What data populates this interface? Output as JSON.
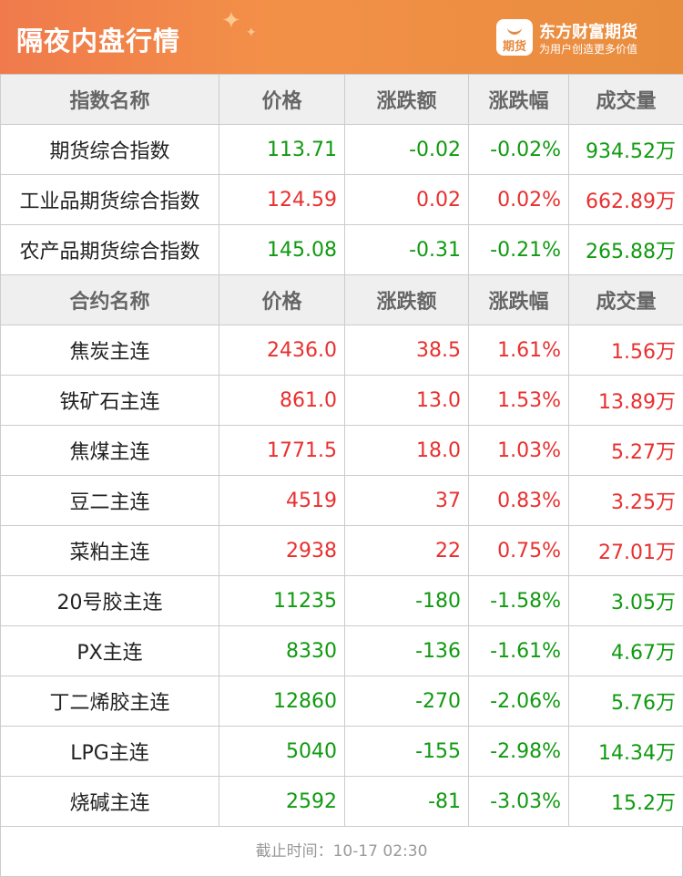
{
  "header": {
    "title": "隔夜内盘行情",
    "brand": "东方财富期货",
    "slogan": "为用户创造更多价值",
    "logo_text": "期货",
    "colors": {
      "up": "#e8302f",
      "down": "#109a10",
      "header": "#f07a4c"
    }
  },
  "index_columns": [
    "指数名称",
    "价格",
    "涨跌额",
    "涨跌幅",
    "成交量"
  ],
  "indices": [
    {
      "name": "期货综合指数",
      "price": "113.71",
      "change": "-0.02",
      "pct": "-0.02%",
      "volume": "934.52万",
      "dir": "dn"
    },
    {
      "name": "工业品期货综合指数",
      "price": "124.59",
      "change": "0.02",
      "pct": "0.02%",
      "volume": "662.89万",
      "dir": "up"
    },
    {
      "name": "农产品期货综合指数",
      "price": "145.08",
      "change": "-0.31",
      "pct": "-0.21%",
      "volume": "265.88万",
      "dir": "dn"
    }
  ],
  "contract_columns": [
    "合约名称",
    "价格",
    "涨跌额",
    "涨跌幅",
    "成交量"
  ],
  "contracts": [
    {
      "name": "焦炭主连",
      "price": "2436.0",
      "change": "38.5",
      "pct": "1.61%",
      "volume": "1.56万",
      "dir": "up"
    },
    {
      "name": "铁矿石主连",
      "price": "861.0",
      "change": "13.0",
      "pct": "1.53%",
      "volume": "13.89万",
      "dir": "up"
    },
    {
      "name": "焦煤主连",
      "price": "1771.5",
      "change": "18.0",
      "pct": "1.03%",
      "volume": "5.27万",
      "dir": "up"
    },
    {
      "name": "豆二主连",
      "price": "4519",
      "change": "37",
      "pct": "0.83%",
      "volume": "3.25万",
      "dir": "up"
    },
    {
      "name": "菜粕主连",
      "price": "2938",
      "change": "22",
      "pct": "0.75%",
      "volume": "27.01万",
      "dir": "up"
    },
    {
      "name": "20号胶主连",
      "price": "11235",
      "change": "-180",
      "pct": "-1.58%",
      "volume": "3.05万",
      "dir": "dn"
    },
    {
      "name": "PX主连",
      "price": "8330",
      "change": "-136",
      "pct": "-1.61%",
      "volume": "4.67万",
      "dir": "dn"
    },
    {
      "name": "丁二烯胶主连",
      "price": "12860",
      "change": "-270",
      "pct": "-2.06%",
      "volume": "5.76万",
      "dir": "dn"
    },
    {
      "name": "LPG主连",
      "price": "5040",
      "change": "-155",
      "pct": "-2.98%",
      "volume": "14.34万",
      "dir": "dn"
    },
    {
      "name": "烧碱主连",
      "price": "2592",
      "change": "-81",
      "pct": "-3.03%",
      "volume": "15.2万",
      "dir": "dn"
    }
  ],
  "footer": {
    "text": "截止时间：10-17 02:30"
  }
}
